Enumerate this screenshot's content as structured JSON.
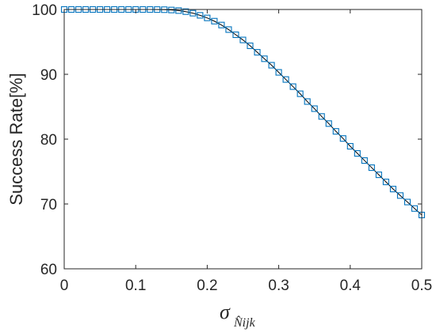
{
  "chart_data": {
    "type": "line",
    "title": "",
    "xlabel": "σ",
    "xlabel_subscript": "N̂ijk",
    "ylabel": "Success Rate[%]",
    "xlim": [
      0,
      0.5
    ],
    "ylim": [
      60,
      100
    ],
    "x_ticks": [
      "0",
      "0.1",
      "0.2",
      "0.3",
      "0.4",
      "0.5"
    ],
    "y_ticks": [
      "60",
      "70",
      "80",
      "90",
      "100"
    ],
    "grid": false,
    "legend": "none",
    "marker": "square",
    "colors": {
      "line": "#000000",
      "marker": "#0072BD",
      "axis": "#262626"
    },
    "series": [
      {
        "x": [
          0.0,
          0.01,
          0.02,
          0.03,
          0.04,
          0.05,
          0.06,
          0.07,
          0.08,
          0.09,
          0.1,
          0.11,
          0.12,
          0.13,
          0.14,
          0.15,
          0.16,
          0.17,
          0.18,
          0.19,
          0.2,
          0.21,
          0.22,
          0.23,
          0.24,
          0.25,
          0.26,
          0.27,
          0.28,
          0.29,
          0.3,
          0.31,
          0.32,
          0.33,
          0.34,
          0.35,
          0.36,
          0.37,
          0.38,
          0.39,
          0.4,
          0.41,
          0.42,
          0.43,
          0.44,
          0.45,
          0.46,
          0.47,
          0.48,
          0.49,
          0.5
        ],
        "values": [
          100,
          100,
          100,
          100,
          100,
          100,
          100,
          100,
          100,
          100,
          100,
          100,
          100,
          99.99,
          99.97,
          99.92,
          99.83,
          99.67,
          99.43,
          99.1,
          98.7,
          98.2,
          97.6,
          96.9,
          96.1,
          95.3,
          94.4,
          93.4,
          92.4,
          91.4,
          90.3,
          89.2,
          88.1,
          87.0,
          85.8,
          84.7,
          83.5,
          82.4,
          81.2,
          80.1,
          78.9,
          77.8,
          76.7,
          75.6,
          74.5,
          73.4,
          72.3,
          71.3,
          70.3,
          69.3,
          68.3
        ]
      }
    ]
  }
}
